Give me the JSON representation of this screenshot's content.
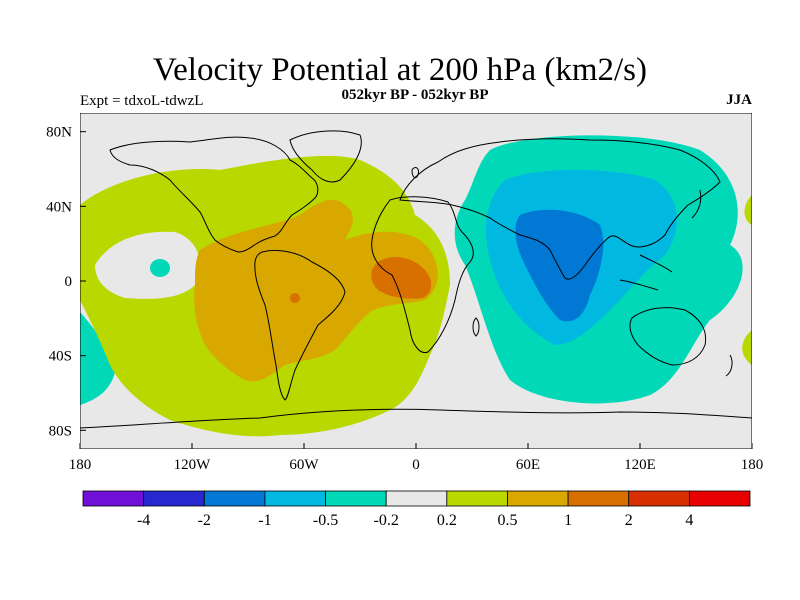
{
  "title": "Velocity Potential at 200 hPa (km2/s)",
  "subtitle": "052kyr BP - 052kyr BP",
  "expt_label": "Expt = tdxoL-tdwzL",
  "season": "JJA",
  "map": {
    "projection": "equirectangular",
    "lon_range": [
      -180,
      180
    ],
    "lat_range": [
      -90,
      90
    ],
    "x_ticks": [
      "180",
      "120W",
      "60W",
      "0",
      "60E",
      "120E",
      "180"
    ],
    "y_ticks": [
      "80N",
      "40N",
      "0",
      "40S",
      "80S"
    ],
    "background_color": "#e8e8e8",
    "coastline_color": "#000000"
  },
  "colorbar": {
    "colors": [
      "#7010d8",
      "#2828d0",
      "#0078d4",
      "#00b8e0",
      "#00d8b8",
      "#e8e8e8",
      "#b8d800",
      "#d8a800",
      "#d87000",
      "#d83000",
      "#e80000"
    ],
    "labels": [
      "-4",
      "-2",
      "-1",
      "-0.5",
      "-0.2",
      "0.2",
      "0.5",
      "1",
      "2",
      "4"
    ]
  }
}
